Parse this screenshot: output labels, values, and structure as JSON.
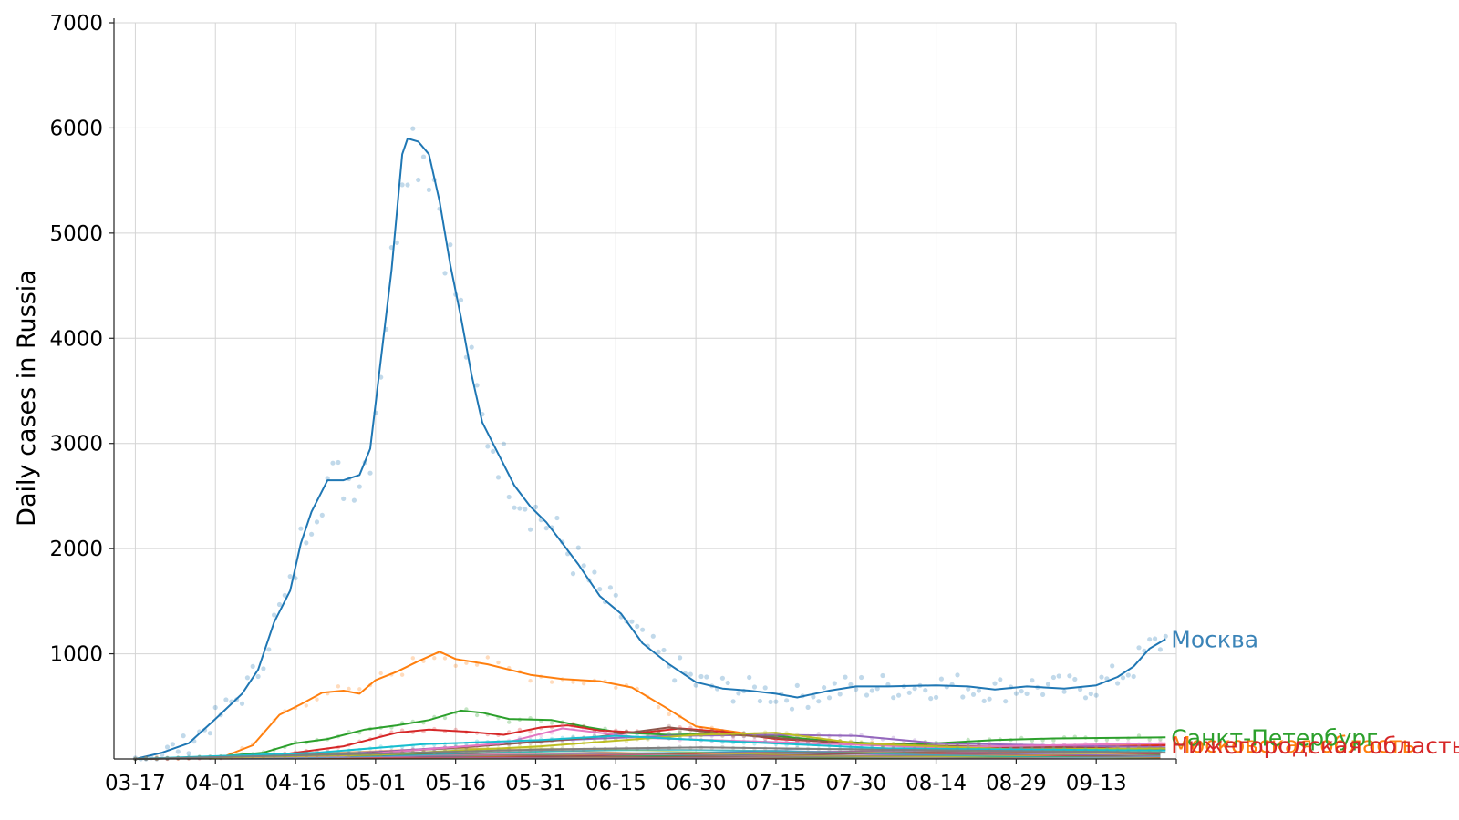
{
  "chart_data": {
    "type": "line",
    "title": "",
    "xlabel": "",
    "ylabel": "Daily cases in Russia",
    "ylim": [
      0,
      7000
    ],
    "xlim": [
      "2020-03-13",
      "2020-09-28"
    ],
    "yticks": [
      1000,
      2000,
      3000,
      4000,
      5000,
      6000,
      7000
    ],
    "xticks": [
      "2020-03-17",
      "2020-04-01",
      "2020-04-16",
      "2020-05-01",
      "2020-05-16",
      "2020-05-31",
      "2020-06-15",
      "2020-06-30",
      "2020-07-15",
      "2020-07-30",
      "2020-08-14",
      "2020-08-29",
      "2020-09-13"
    ],
    "xtick_labels": [
      "03-17",
      "04-01",
      "04-16",
      "05-01",
      "05-16",
      "05-31",
      "06-15",
      "06-30",
      "07-15",
      "07-30",
      "08-14",
      "08-29",
      "09-13"
    ],
    "grid": true,
    "legend": "none; series labelled at line ends",
    "series": [
      {
        "name": "Москва",
        "color": "#1f77b4",
        "label_color": "#3b84b8",
        "points": [
          [
            "2020-03-17",
            0
          ],
          [
            "2020-03-22",
            60
          ],
          [
            "2020-03-27",
            150
          ],
          [
            "2020-04-01",
            380
          ],
          [
            "2020-04-06",
            620
          ],
          [
            "2020-04-09",
            850
          ],
          [
            "2020-04-12",
            1300
          ],
          [
            "2020-04-15",
            1600
          ],
          [
            "2020-04-17",
            2050
          ],
          [
            "2020-04-19",
            2350
          ],
          [
            "2020-04-22",
            2650
          ],
          [
            "2020-04-25",
            2650
          ],
          [
            "2020-04-28",
            2700
          ],
          [
            "2020-04-30",
            2950
          ],
          [
            "2020-05-02",
            3800
          ],
          [
            "2020-05-04",
            4650
          ],
          [
            "2020-05-06",
            5750
          ],
          [
            "2020-05-07",
            5900
          ],
          [
            "2020-05-09",
            5870
          ],
          [
            "2020-05-11",
            5750
          ],
          [
            "2020-05-13",
            5300
          ],
          [
            "2020-05-15",
            4700
          ],
          [
            "2020-05-17",
            4200
          ],
          [
            "2020-05-19",
            3650
          ],
          [
            "2020-05-21",
            3200
          ],
          [
            "2020-05-24",
            2900
          ],
          [
            "2020-05-27",
            2600
          ],
          [
            "2020-05-30",
            2400
          ],
          [
            "2020-06-02",
            2250
          ],
          [
            "2020-06-05",
            2050
          ],
          [
            "2020-06-08",
            1850
          ],
          [
            "2020-06-12",
            1550
          ],
          [
            "2020-06-16",
            1380
          ],
          [
            "2020-06-20",
            1100
          ],
          [
            "2020-06-25",
            900
          ],
          [
            "2020-06-30",
            730
          ],
          [
            "2020-07-05",
            670
          ],
          [
            "2020-07-10",
            650
          ],
          [
            "2020-07-15",
            620
          ],
          [
            "2020-07-19",
            585
          ],
          [
            "2020-07-25",
            650
          ],
          [
            "2020-07-30",
            690
          ],
          [
            "2020-08-05",
            690
          ],
          [
            "2020-08-14",
            700
          ],
          [
            "2020-08-20",
            690
          ],
          [
            "2020-08-25",
            660
          ],
          [
            "2020-08-31",
            690
          ],
          [
            "2020-09-07",
            670
          ],
          [
            "2020-09-13",
            700
          ],
          [
            "2020-09-17",
            780
          ],
          [
            "2020-09-20",
            880
          ],
          [
            "2020-09-23",
            1050
          ],
          [
            "2020-09-26",
            1140
          ]
        ]
      },
      {
        "name": "Московская область",
        "color": "#ff7f0e",
        "points": [
          [
            "2020-03-17",
            0
          ],
          [
            "2020-03-28",
            10
          ],
          [
            "2020-04-03",
            30
          ],
          [
            "2020-04-08",
            130
          ],
          [
            "2020-04-13",
            420
          ],
          [
            "2020-04-17",
            520
          ],
          [
            "2020-04-21",
            630
          ],
          [
            "2020-04-25",
            650
          ],
          [
            "2020-04-28",
            620
          ],
          [
            "2020-05-01",
            750
          ],
          [
            "2020-05-05",
            830
          ],
          [
            "2020-05-09",
            930
          ],
          [
            "2020-05-13",
            1020
          ],
          [
            "2020-05-16",
            950
          ],
          [
            "2020-05-22",
            900
          ],
          [
            "2020-05-30",
            800
          ],
          [
            "2020-06-05",
            760
          ],
          [
            "2020-06-12",
            740
          ],
          [
            "2020-06-18",
            680
          ],
          [
            "2020-06-24",
            500
          ],
          [
            "2020-06-30",
            310
          ],
          [
            "2020-07-07",
            260
          ],
          [
            "2020-07-15",
            200
          ],
          [
            "2020-07-25",
            160
          ],
          [
            "2020-08-05",
            130
          ],
          [
            "2020-08-20",
            110
          ],
          [
            "2020-09-05",
            110
          ],
          [
            "2020-09-26",
            140
          ]
        ]
      },
      {
        "name": "Санкт-Петербург",
        "color": "#2ca02c",
        "label_color": "#2ca02c",
        "points": [
          [
            "2020-03-17",
            0
          ],
          [
            "2020-04-01",
            20
          ],
          [
            "2020-04-10",
            60
          ],
          [
            "2020-04-16",
            150
          ],
          [
            "2020-04-22",
            190
          ],
          [
            "2020-04-29",
            280
          ],
          [
            "2020-05-05",
            320
          ],
          [
            "2020-05-11",
            370
          ],
          [
            "2020-05-17",
            460
          ],
          [
            "2020-05-21",
            440
          ],
          [
            "2020-05-26",
            380
          ],
          [
            "2020-06-03",
            370
          ],
          [
            "2020-06-10",
            300
          ],
          [
            "2020-06-16",
            250
          ],
          [
            "2020-06-25",
            230
          ],
          [
            "2020-07-05",
            240
          ],
          [
            "2020-07-15",
            220
          ],
          [
            "2020-07-25",
            170
          ],
          [
            "2020-08-05",
            140
          ],
          [
            "2020-08-14",
            150
          ],
          [
            "2020-08-25",
            180
          ],
          [
            "2020-09-05",
            195
          ],
          [
            "2020-09-26",
            205
          ]
        ]
      },
      {
        "name": "Нижегородская область",
        "color": "#d62728",
        "label_color": "#d62728",
        "points": [
          [
            "2020-03-17",
            0
          ],
          [
            "2020-04-10",
            20
          ],
          [
            "2020-04-25",
            120
          ],
          [
            "2020-05-05",
            250
          ],
          [
            "2020-05-11",
            280
          ],
          [
            "2020-05-18",
            260
          ],
          [
            "2020-05-25",
            230
          ],
          [
            "2020-06-01",
            300
          ],
          [
            "2020-06-06",
            320
          ],
          [
            "2020-06-12",
            270
          ],
          [
            "2020-06-20",
            250
          ],
          [
            "2020-06-27",
            290
          ],
          [
            "2020-07-05",
            260
          ],
          [
            "2020-07-15",
            190
          ],
          [
            "2020-07-30",
            150
          ],
          [
            "2020-08-14",
            120
          ],
          [
            "2020-08-29",
            110
          ],
          [
            "2020-09-13",
            115
          ],
          [
            "2020-09-26",
            130
          ]
        ]
      },
      {
        "color": "#9467bd",
        "points": [
          [
            "2020-03-17",
            0
          ],
          [
            "2020-04-20",
            30
          ],
          [
            "2020-05-15",
            110
          ],
          [
            "2020-06-05",
            180
          ],
          [
            "2020-06-25",
            220
          ],
          [
            "2020-07-15",
            230
          ],
          [
            "2020-07-30",
            220
          ],
          [
            "2020-08-14",
            150
          ],
          [
            "2020-09-26",
            110
          ]
        ]
      },
      {
        "color": "#8c564b",
        "points": [
          [
            "2020-03-17",
            0
          ],
          [
            "2020-04-25",
            40
          ],
          [
            "2020-05-20",
            120
          ],
          [
            "2020-06-10",
            200
          ],
          [
            "2020-06-25",
            300
          ],
          [
            "2020-07-05",
            240
          ],
          [
            "2020-07-30",
            140
          ],
          [
            "2020-09-26",
            90
          ]
        ]
      },
      {
        "color": "#e377c2",
        "points": [
          [
            "2020-03-17",
            0
          ],
          [
            "2020-04-25",
            30
          ],
          [
            "2020-05-25",
            150
          ],
          [
            "2020-06-05",
            290
          ],
          [
            "2020-06-20",
            200
          ],
          [
            "2020-07-15",
            160
          ],
          [
            "2020-08-14",
            110
          ],
          [
            "2020-09-26",
            150
          ]
        ]
      },
      {
        "color": "#bcbd22",
        "points": [
          [
            "2020-03-17",
            0
          ],
          [
            "2020-05-01",
            40
          ],
          [
            "2020-06-01",
            120
          ],
          [
            "2020-06-30",
            230
          ],
          [
            "2020-07-15",
            250
          ],
          [
            "2020-07-30",
            150
          ],
          [
            "2020-08-29",
            90
          ],
          [
            "2020-09-26",
            100
          ]
        ]
      },
      {
        "color": "#17becf",
        "points": [
          [
            "2020-03-17",
            0
          ],
          [
            "2020-04-20",
            60
          ],
          [
            "2020-05-10",
            140
          ],
          [
            "2020-06-01",
            180
          ],
          [
            "2020-06-15",
            220
          ],
          [
            "2020-07-05",
            170
          ],
          [
            "2020-08-05",
            100
          ],
          [
            "2020-09-26",
            80
          ]
        ]
      },
      {
        "color": "#7f7f7f",
        "points": [
          [
            "2020-03-17",
            0
          ],
          [
            "2020-05-01",
            50
          ],
          [
            "2020-06-01",
            90
          ],
          [
            "2020-07-01",
            110
          ],
          [
            "2020-08-01",
            90
          ],
          [
            "2020-09-26",
            60
          ]
        ]
      }
    ]
  }
}
